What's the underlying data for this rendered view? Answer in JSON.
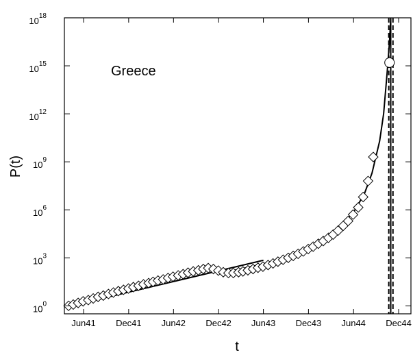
{
  "chart_data": {
    "type": "scatter",
    "title": "",
    "xlabel": "t",
    "ylabel": "P(t)",
    "annotation": "Greece",
    "y_scale": "log10",
    "xlim": [
      "1941-03-15",
      "1945-01-20"
    ],
    "ylim_exponent": [
      -0.5,
      18
    ],
    "x_ticks": [
      {
        "date": "1941-06-01",
        "label": "Jun41"
      },
      {
        "date": "1941-12-01",
        "label": "Dec41"
      },
      {
        "date": "1942-06-01",
        "label": "Jun42"
      },
      {
        "date": "1942-12-01",
        "label": "Dec42"
      },
      {
        "date": "1943-06-01",
        "label": "Jun43"
      },
      {
        "date": "1943-12-01",
        "label": "Dec43"
      },
      {
        "date": "1944-06-01",
        "label": "Jun44"
      },
      {
        "date": "1944-12-01",
        "label": "Dec44"
      }
    ],
    "y_ticks": [
      {
        "exponent": 0,
        "base": "10",
        "exp": "0"
      },
      {
        "exponent": 3,
        "base": "10",
        "exp": "3"
      },
      {
        "exponent": 6,
        "base": "10",
        "exp": "6"
      },
      {
        "exponent": 9,
        "base": "10",
        "exp": "9"
      },
      {
        "exponent": 12,
        "base": "10",
        "exp": "12"
      },
      {
        "exponent": 15,
        "base": "10",
        "exp": "15"
      },
      {
        "exponent": 18,
        "base": "10",
        "exp": "18"
      }
    ],
    "series": [
      {
        "marker": "diamond",
        "points": [
          [
            "1941-04-01",
            0.0
          ],
          [
            "1941-04-20",
            0.08
          ],
          [
            "1941-05-10",
            0.18
          ],
          [
            "1941-05-30",
            0.28
          ],
          [
            "1941-06-20",
            0.36
          ],
          [
            "1941-07-10",
            0.46
          ],
          [
            "1941-07-30",
            0.56
          ],
          [
            "1941-08-20",
            0.64
          ],
          [
            "1941-09-10",
            0.74
          ],
          [
            "1941-09-30",
            0.83
          ],
          [
            "1941-10-20",
            0.92
          ],
          [
            "1941-11-10",
            1.0
          ],
          [
            "1941-11-30",
            1.08
          ],
          [
            "1941-12-20",
            1.17
          ],
          [
            "1942-01-10",
            1.25
          ],
          [
            "1942-01-30",
            1.34
          ],
          [
            "1942-02-20",
            1.42
          ],
          [
            "1942-03-10",
            1.5
          ],
          [
            "1942-03-30",
            1.58
          ],
          [
            "1942-04-20",
            1.65
          ],
          [
            "1942-05-10",
            1.74
          ],
          [
            "1942-05-30",
            1.82
          ],
          [
            "1942-06-20",
            1.9
          ],
          [
            "1942-07-10",
            1.98
          ],
          [
            "1942-07-30",
            2.07
          ],
          [
            "1942-08-20",
            2.15
          ],
          [
            "1942-09-10",
            2.22
          ],
          [
            "1942-09-30",
            2.3
          ],
          [
            "1942-10-20",
            2.36
          ],
          [
            "1942-11-10",
            2.3
          ],
          [
            "1942-11-30",
            2.2
          ],
          [
            "1942-12-20",
            2.1
          ],
          [
            "1943-01-10",
            2.05
          ],
          [
            "1943-01-30",
            2.05
          ],
          [
            "1943-02-20",
            2.1
          ],
          [
            "1943-03-10",
            2.15
          ],
          [
            "1943-03-30",
            2.22
          ],
          [
            "1943-04-20",
            2.3
          ],
          [
            "1943-05-10",
            2.38
          ],
          [
            "1943-05-30",
            2.45
          ],
          [
            "1943-06-20",
            2.55
          ],
          [
            "1943-07-10",
            2.65
          ],
          [
            "1943-07-30",
            2.76
          ],
          [
            "1943-08-20",
            2.88
          ],
          [
            "1943-09-10",
            3.0
          ],
          [
            "1943-09-30",
            3.12
          ],
          [
            "1943-10-20",
            3.25
          ],
          [
            "1943-11-10",
            3.4
          ],
          [
            "1943-11-30",
            3.55
          ],
          [
            "1943-12-20",
            3.7
          ],
          [
            "1944-01-10",
            3.88
          ],
          [
            "1944-01-30",
            4.05
          ],
          [
            "1944-02-20",
            4.25
          ],
          [
            "1944-03-10",
            4.45
          ],
          [
            "1944-03-30",
            4.7
          ],
          [
            "1944-04-20",
            5.0
          ],
          [
            "1944-05-10",
            5.3
          ],
          [
            "1944-05-30",
            5.7
          ],
          [
            "1944-06-20",
            6.15
          ],
          [
            "1944-07-10",
            6.8
          ],
          [
            "1944-07-30",
            7.8
          ],
          [
            "1944-08-20",
            9.3
          ]
        ]
      },
      {
        "marker": "circle",
        "points": [
          [
            "1944-10-25",
            15.2
          ]
        ]
      }
    ],
    "fit_lines": [
      {
        "style": "solid",
        "points": [
          [
            "1941-04-10",
            0.0
          ],
          [
            "1943-06-01",
            2.85
          ]
        ]
      },
      {
        "style": "solid",
        "points": [
          [
            "1942-12-20",
            2.1
          ],
          [
            "1943-03-01",
            2.3
          ],
          [
            "1943-06-01",
            2.62
          ],
          [
            "1943-09-01",
            3.05
          ],
          [
            "1943-12-01",
            3.65
          ],
          [
            "1944-02-01",
            4.15
          ],
          [
            "1944-04-01",
            4.85
          ],
          [
            "1944-06-01",
            5.85
          ],
          [
            "1944-07-15",
            7.0
          ],
          [
            "1944-08-15",
            8.3
          ],
          [
            "1944-09-15",
            10.3
          ],
          [
            "1944-10-01",
            12.0
          ],
          [
            "1944-10-15",
            14.5
          ],
          [
            "1944-10-25",
            16.5
          ],
          [
            "1944-10-30",
            18.0
          ]
        ]
      }
    ],
    "vertical_lines": [
      {
        "date": "1944-10-22",
        "style": "dashed"
      },
      {
        "date": "1944-10-30",
        "style": "solid"
      },
      {
        "date": "1944-11-08",
        "style": "dashed"
      }
    ]
  }
}
